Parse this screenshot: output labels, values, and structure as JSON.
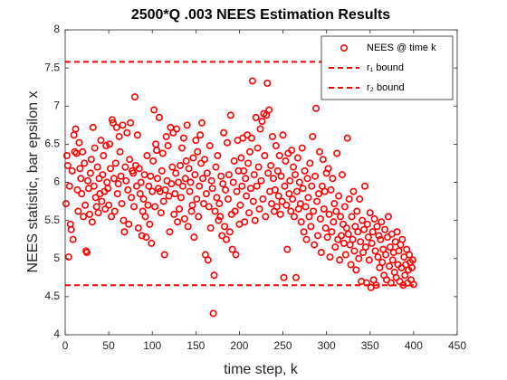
{
  "chart_data": {
    "type": "scatter",
    "title": "2500*Q .003 NEES Estimation Results",
    "xlabel": "time step, k",
    "ylabel": "NEES statistic, bar epsilon x",
    "xlim": [
      0,
      450
    ],
    "xticks": [
      0,
      50,
      100,
      150,
      200,
      250,
      300,
      350,
      400,
      450
    ],
    "ylim": [
      4,
      8
    ],
    "yticks": [
      4,
      4.5,
      5,
      5.5,
      6,
      6.5,
      7,
      7.5,
      8
    ],
    "legend": "upper right",
    "series": [
      {
        "name": "NEES @ time k",
        "color": "#ff0000",
        "kind": "scatter",
        "x": [
          1,
          2,
          3,
          4,
          5,
          6,
          7,
          8,
          9,
          10,
          11,
          12,
          13,
          14,
          15,
          16,
          17,
          18,
          19,
          20,
          21,
          22,
          23,
          24,
          25,
          26,
          27,
          28,
          29,
          30,
          31,
          32,
          33,
          34,
          35,
          36,
          37,
          38,
          39,
          40,
          41,
          42,
          43,
          44,
          45,
          46,
          47,
          48,
          49,
          50,
          51,
          52,
          53,
          54,
          55,
          56,
          57,
          58,
          59,
          60,
          61,
          62,
          63,
          64,
          65,
          66,
          67,
          68,
          69,
          70,
          71,
          72,
          73,
          74,
          75,
          76,
          77,
          78,
          79,
          80,
          81,
          82,
          83,
          84,
          85,
          86,
          87,
          88,
          89,
          90,
          91,
          92,
          93,
          94,
          95,
          96,
          97,
          98,
          99,
          100,
          101,
          102,
          103,
          104,
          105,
          106,
          107,
          108,
          109,
          110,
          111,
          112,
          113,
          114,
          115,
          116,
          117,
          118,
          119,
          120,
          121,
          122,
          123,
          124,
          125,
          126,
          127,
          128,
          129,
          130,
          131,
          132,
          133,
          134,
          135,
          136,
          137,
          138,
          139,
          140,
          141,
          142,
          143,
          144,
          145,
          146,
          147,
          148,
          149,
          150,
          151,
          152,
          153,
          154,
          155,
          156,
          157,
          158,
          159,
          160,
          161,
          162,
          163,
          164,
          165,
          166,
          167,
          168,
          169,
          170,
          171,
          172,
          173,
          174,
          175,
          176,
          177,
          178,
          179,
          180,
          181,
          182,
          183,
          184,
          185,
          186,
          187,
          188,
          189,
          190,
          191,
          192,
          193,
          194,
          195,
          196,
          197,
          198,
          199,
          200,
          201,
          202,
          203,
          204,
          205,
          206,
          207,
          208,
          209,
          210,
          211,
          212,
          213,
          214,
          215,
          216,
          217,
          218,
          219,
          220,
          221,
          222,
          223,
          224,
          225,
          226,
          227,
          228,
          229,
          230,
          231,
          232,
          233,
          234,
          235,
          236,
          237,
          238,
          239,
          240,
          241,
          242,
          243,
          244,
          245,
          246,
          247,
          248,
          249,
          250,
          251,
          252,
          253,
          254,
          255,
          256,
          257,
          258,
          259,
          260,
          261,
          262,
          263,
          264,
          265,
          266,
          267,
          268,
          269,
          270,
          271,
          272,
          273,
          274,
          275,
          276,
          277,
          278,
          279,
          280,
          281,
          282,
          283,
          284,
          285,
          286,
          287,
          288,
          289,
          290,
          291,
          292,
          293,
          294,
          295,
          296,
          297,
          298,
          299,
          300,
          301,
          302,
          303,
          304,
          305,
          306,
          307,
          308,
          309,
          310,
          311,
          312,
          313,
          314,
          315,
          316,
          317,
          318,
          319,
          320,
          321,
          322,
          323,
          324,
          325,
          326,
          327,
          328,
          329,
          330,
          331,
          332,
          333,
          334,
          335,
          336,
          337,
          338,
          339,
          340,
          341,
          342,
          343,
          344,
          345,
          346,
          347,
          348,
          349,
          350,
          351,
          352,
          353,
          354,
          355,
          356,
          357,
          358,
          359,
          360,
          361,
          362,
          363,
          364,
          365,
          366,
          367,
          368,
          369,
          370,
          371,
          372,
          373,
          374,
          375,
          376,
          377,
          378,
          379,
          380,
          381,
          382,
          383,
          384,
          385,
          386,
          387,
          388,
          389,
          390,
          391,
          392,
          393,
          394,
          395,
          396,
          397,
          398,
          399,
          400
        ],
        "values": [
          5.72,
          6.35,
          6.22,
          5.02,
          5.95,
          5.45,
          5.38,
          6.15,
          5.25,
          6.62,
          6.4,
          6.7,
          6.38,
          5.9,
          5.62,
          6.52,
          6.18,
          6.05,
          5.85,
          6.4,
          5.55,
          6.25,
          5.7,
          5.1,
          5.08,
          6.02,
          5.92,
          5.58,
          6.12,
          6.3,
          5.48,
          6.72,
          5.95,
          6.45,
          5.8,
          5.68,
          6.2,
          5.6,
          6.05,
          5.85,
          6.55,
          5.75,
          6.1,
          6.35,
          5.88,
          5.65,
          6.48,
          6.0,
          5.92,
          5.7,
          6.5,
          6.18,
          5.55,
          6.82,
          6.78,
          6.05,
          5.62,
          6.25,
          6.72,
          5.85,
          5.98,
          6.6,
          6.4,
          6.08,
          5.72,
          6.75,
          5.5,
          5.35,
          6.2,
          6.02,
          6.65,
          5.9,
          5.45,
          6.3,
          6.78,
          5.8,
          6.15,
          6.12,
          5.68,
          7.12,
          6.22,
          5.95,
          6.62,
          5.4,
          6.18,
          5.85,
          6.0,
          5.3,
          5.62,
          5.78,
          6.1,
          5.55,
          5.28,
          6.35,
          5.7,
          5.95,
          5.45,
          6.08,
          5.2,
          5.88,
          6.28,
          6.95,
          5.68,
          6.5,
          6.42,
          6.05,
          5.92,
          6.85,
          5.88,
          5.6,
          6.15,
          6.38,
          5.75,
          5.05,
          5.9,
          6.6,
          6.02,
          6.48,
          5.82,
          5.35,
          6.72,
          5.98,
          6.2,
          6.65,
          5.58,
          5.85,
          6.12,
          6.7,
          5.48,
          6.0,
          5.65,
          6.22,
          5.8,
          6.45,
          5.95,
          6.58,
          5.52,
          6.05,
          6.28,
          6.75,
          5.42,
          6.18,
          5.88,
          6.0,
          5.62,
          5.7,
          6.32,
          5.28,
          6.1,
          6.55,
          5.78,
          6.4,
          5.55,
          5.95,
          6.62,
          6.25,
          6.78,
          6.05,
          5.72,
          6.3,
          5.05,
          5.85,
          6.12,
          4.98,
          5.68,
          6.48,
          5.4,
          6.02,
          5.92,
          4.28,
          4.78,
          5.62,
          6.2,
          5.8,
          6.35,
          5.5,
          5.72,
          5.55,
          6.08,
          5.3,
          5.98,
          6.65,
          5.42,
          5.9,
          5.25,
          6.52,
          5.78,
          6.1,
          5.35,
          6.88,
          5.58,
          5.12,
          6.0,
          6.28,
          5.62,
          5.05,
          5.88,
          6.55,
          6.15,
          5.45,
          5.7,
          6.32,
          5.95,
          6.58,
          6.15,
          5.48,
          6.05,
          5.82,
          6.62,
          6.25,
          5.6,
          6.4,
          5.92,
          6.58,
          7.33,
          5.75,
          6.1,
          5.5,
          6.85,
          5.95,
          6.45,
          6.2,
          5.65,
          6.7,
          6.02,
          6.8,
          5.78,
          6.9,
          6.35,
          5.55,
          6.88,
          7.3,
          6.12,
          6.95,
          5.88,
          6.22,
          5.72,
          6.6,
          6.05,
          5.62,
          5.9,
          6.48,
          5.68,
          6.15,
          5.82,
          6.35,
          5.58,
          6.08,
          5.75,
          6.62,
          4.75,
          5.95,
          6.28,
          5.7,
          5.12,
          6.38,
          5.85,
          6.02,
          5.62,
          6.42,
          5.78,
          6.2,
          5.55,
          6.1,
          4.75,
          5.88,
          6.32,
          5.65,
          6.0,
          5.72,
          5.48,
          6.45,
          5.92,
          5.35,
          6.15,
          5.68,
          5.25,
          6.05,
          5.8,
          5.55,
          6.25,
          5.42,
          5.95,
          6.6,
          5.62,
          5.18,
          6.08,
          6.97,
          5.75,
          5.3,
          5.85,
          6.4,
          5.52,
          5.08,
          5.95,
          6.3,
          5.65,
          5.88,
          5.4,
          6.12,
          5.28,
          6.18,
          5.58,
          5.02,
          5.9,
          5.35,
          6.05,
          5.48,
          5.72,
          5.15,
          5.62,
          6.38,
          5.25,
          5.82,
          4.98,
          5.55,
          5.3,
          6.1,
          5.45,
          5.2,
          5.68,
          5.05,
          5.4,
          6.58,
          5.32,
          5.78,
          5.18,
          4.92,
          5.55,
          5.25,
          5.88,
          5.1,
          5.42,
          4.85,
          5.62,
          5.35,
          5.0,
          5.78,
          5.22,
          4.7,
          5.5,
          5.08,
          5.38,
          5.95,
          5.15,
          4.68,
          5.45,
          5.28,
          4.98,
          5.6,
          4.62,
          5.2,
          5.35,
          4.72,
          5.52,
          5.1,
          4.65,
          5.42,
          5.02,
          5.3,
          4.88,
          5.25,
          5.48,
          4.95,
          5.12,
          4.78,
          5.38,
          5.05,
          4.72,
          5.28,
          5.55,
          4.9,
          5.15,
          4.68,
          5.32,
          4.98,
          5.08,
          4.82,
          5.22,
          4.75,
          5.35,
          4.92,
          5.1,
          4.7,
          5.18,
          4.88,
          5.25,
          4.65,
          5.02,
          4.78,
          4.92,
          5.12,
          4.68,
          4.85,
          5.05,
          4.95,
          4.72,
          4.88,
          4.98,
          4.66
        ]
      },
      {
        "name": "r₁ bound",
        "color": "#ff0000",
        "kind": "dashed-line",
        "x": [
          0,
          400
        ],
        "values": [
          4.65,
          4.65
        ]
      },
      {
        "name": "r₂ bound",
        "color": "#ff0000",
        "kind": "dashed-line",
        "x": [
          0,
          400
        ],
        "values": [
          7.58,
          7.58
        ]
      }
    ]
  }
}
